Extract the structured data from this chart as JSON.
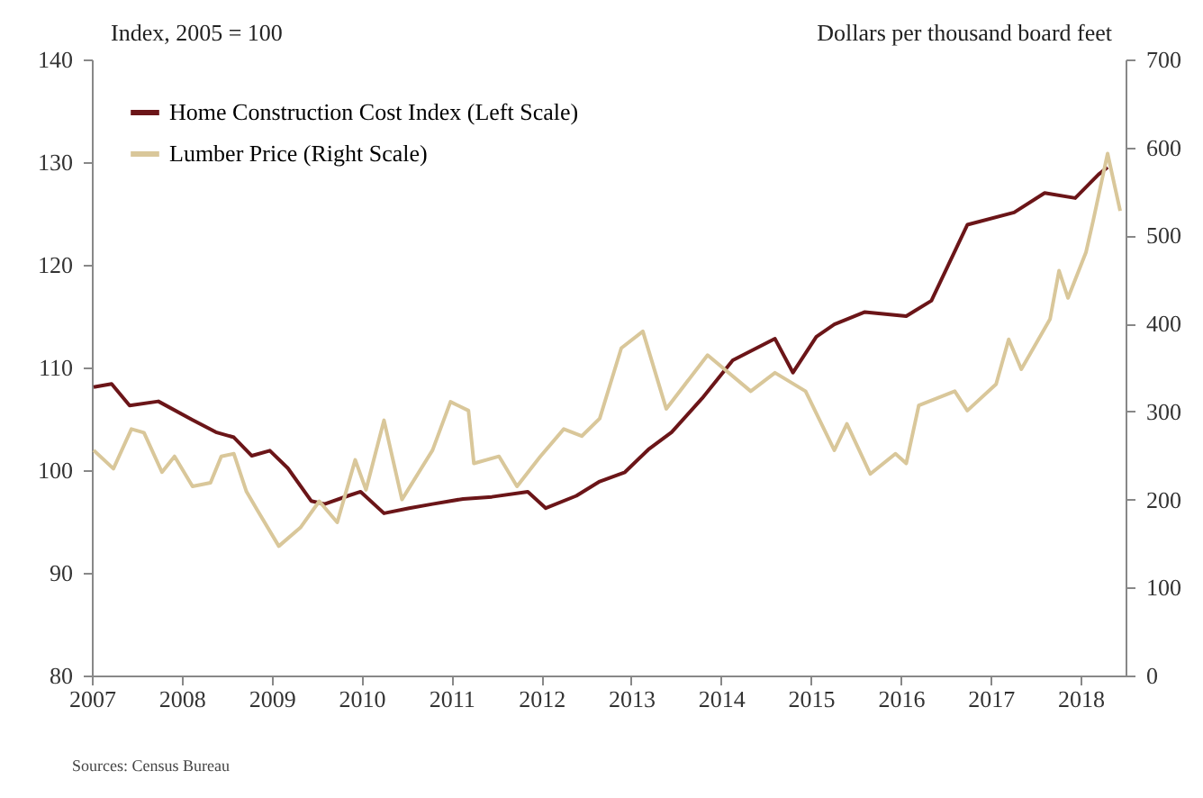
{
  "chart_data": {
    "type": "line",
    "ylabel": "Index, 2005 = 100",
    "y2label": "Dollars per thousand board feet",
    "annotations": [
      "Sources: Census Bureau"
    ],
    "xlim": [
      2007,
      2018.5
    ],
    "xticks": [
      2007,
      2008,
      2009,
      2010,
      2011,
      2012,
      2013,
      2014,
      2015,
      2016,
      2017,
      2018
    ],
    "ylim": [
      80,
      140
    ],
    "yticks": [
      80,
      90,
      100,
      110,
      120,
      130,
      140
    ],
    "y2lim": [
      0,
      700
    ],
    "y2ticks": [
      0,
      100,
      200,
      300,
      400,
      500,
      600,
      700
    ],
    "grid": false,
    "legend": "top left",
    "marker": "none",
    "line_style": "solid",
    "series": [
      {
        "name": "Home Construction Cost Index (Left Scale)",
        "color": "#6b1518",
        "x": [
          2007.02,
          2007.22,
          2007.42,
          2007.74,
          2008.12,
          2008.38,
          2008.58,
          2008.78,
          2008.98,
          2009.18,
          2009.44,
          2009.59,
          2009.85,
          2009.99,
          2010.25,
          2010.53,
          2010.79,
          2011.13,
          2011.45,
          2011.85,
          2012.05,
          2012.39,
          2012.65,
          2012.93,
          2013.19,
          2013.45,
          2013.79,
          2014.13,
          2014.6,
          2014.8,
          2015.06,
          2015.26,
          2015.6,
          2016.06,
          2016.34,
          2016.74,
          2017.26,
          2017.6,
          2017.94,
          2018.2,
          2018.3
        ],
        "values": [
          108.1,
          108.4,
          106.3,
          106.7,
          104.9,
          103.7,
          103.2,
          101.4,
          101.9,
          100.2,
          97,
          96.7,
          97.5,
          97.9,
          95.8,
          96.3,
          96.7,
          97.2,
          97.4,
          97.9,
          96.3,
          97.5,
          98.9,
          99.8,
          102,
          103.7,
          107,
          110.7,
          112.8,
          109.5,
          113,
          114.2,
          115.4,
          115,
          116.5,
          123.9,
          125.1,
          127,
          126.5,
          128.8,
          129.5
        ]
      },
      {
        "name": "Lumber Price (Right Scale)",
        "color": "#d9c79a",
        "axis": "y2",
        "x": [
          2007.02,
          2007.24,
          2007.44,
          2007.58,
          2007.78,
          2007.92,
          2008.12,
          2008.32,
          2008.44,
          2008.58,
          2008.72,
          2008.84,
          2009.08,
          2009.32,
          2009.53,
          2009.73,
          2009.93,
          2010.05,
          2010.25,
          2010.45,
          2010.79,
          2010.99,
          2011.19,
          2011.25,
          2011.53,
          2011.73,
          2011.99,
          2012.25,
          2012.45,
          2012.65,
          2012.89,
          2013.13,
          2013.39,
          2013.85,
          2014.33,
          2014.6,
          2014.94,
          2015.26,
          2015.4,
          2015.66,
          2015.94,
          2016.06,
          2016.2,
          2016.6,
          2016.74,
          2017.06,
          2017.2,
          2017.34,
          2017.66,
          2017.76,
          2017.86,
          2018.06,
          2018.14,
          2018.3,
          2018.44
        ],
        "values": [
          256,
          235,
          280,
          276,
          231,
          249,
          215,
          219,
          249,
          252,
          209,
          188,
          147,
          168,
          198,
          174,
          245,
          211,
          290,
          200,
          256,
          311,
          301,
          241,
          249,
          215,
          249,
          280,
          272,
          292,
          372,
          391,
          303,
          364,
          323,
          344,
          323,
          256,
          286,
          229,
          252,
          241,
          307,
          323,
          301,
          331,
          382,
          348,
          405,
          460,
          429,
          481,
          517,
          593,
          528
        ]
      }
    ]
  }
}
